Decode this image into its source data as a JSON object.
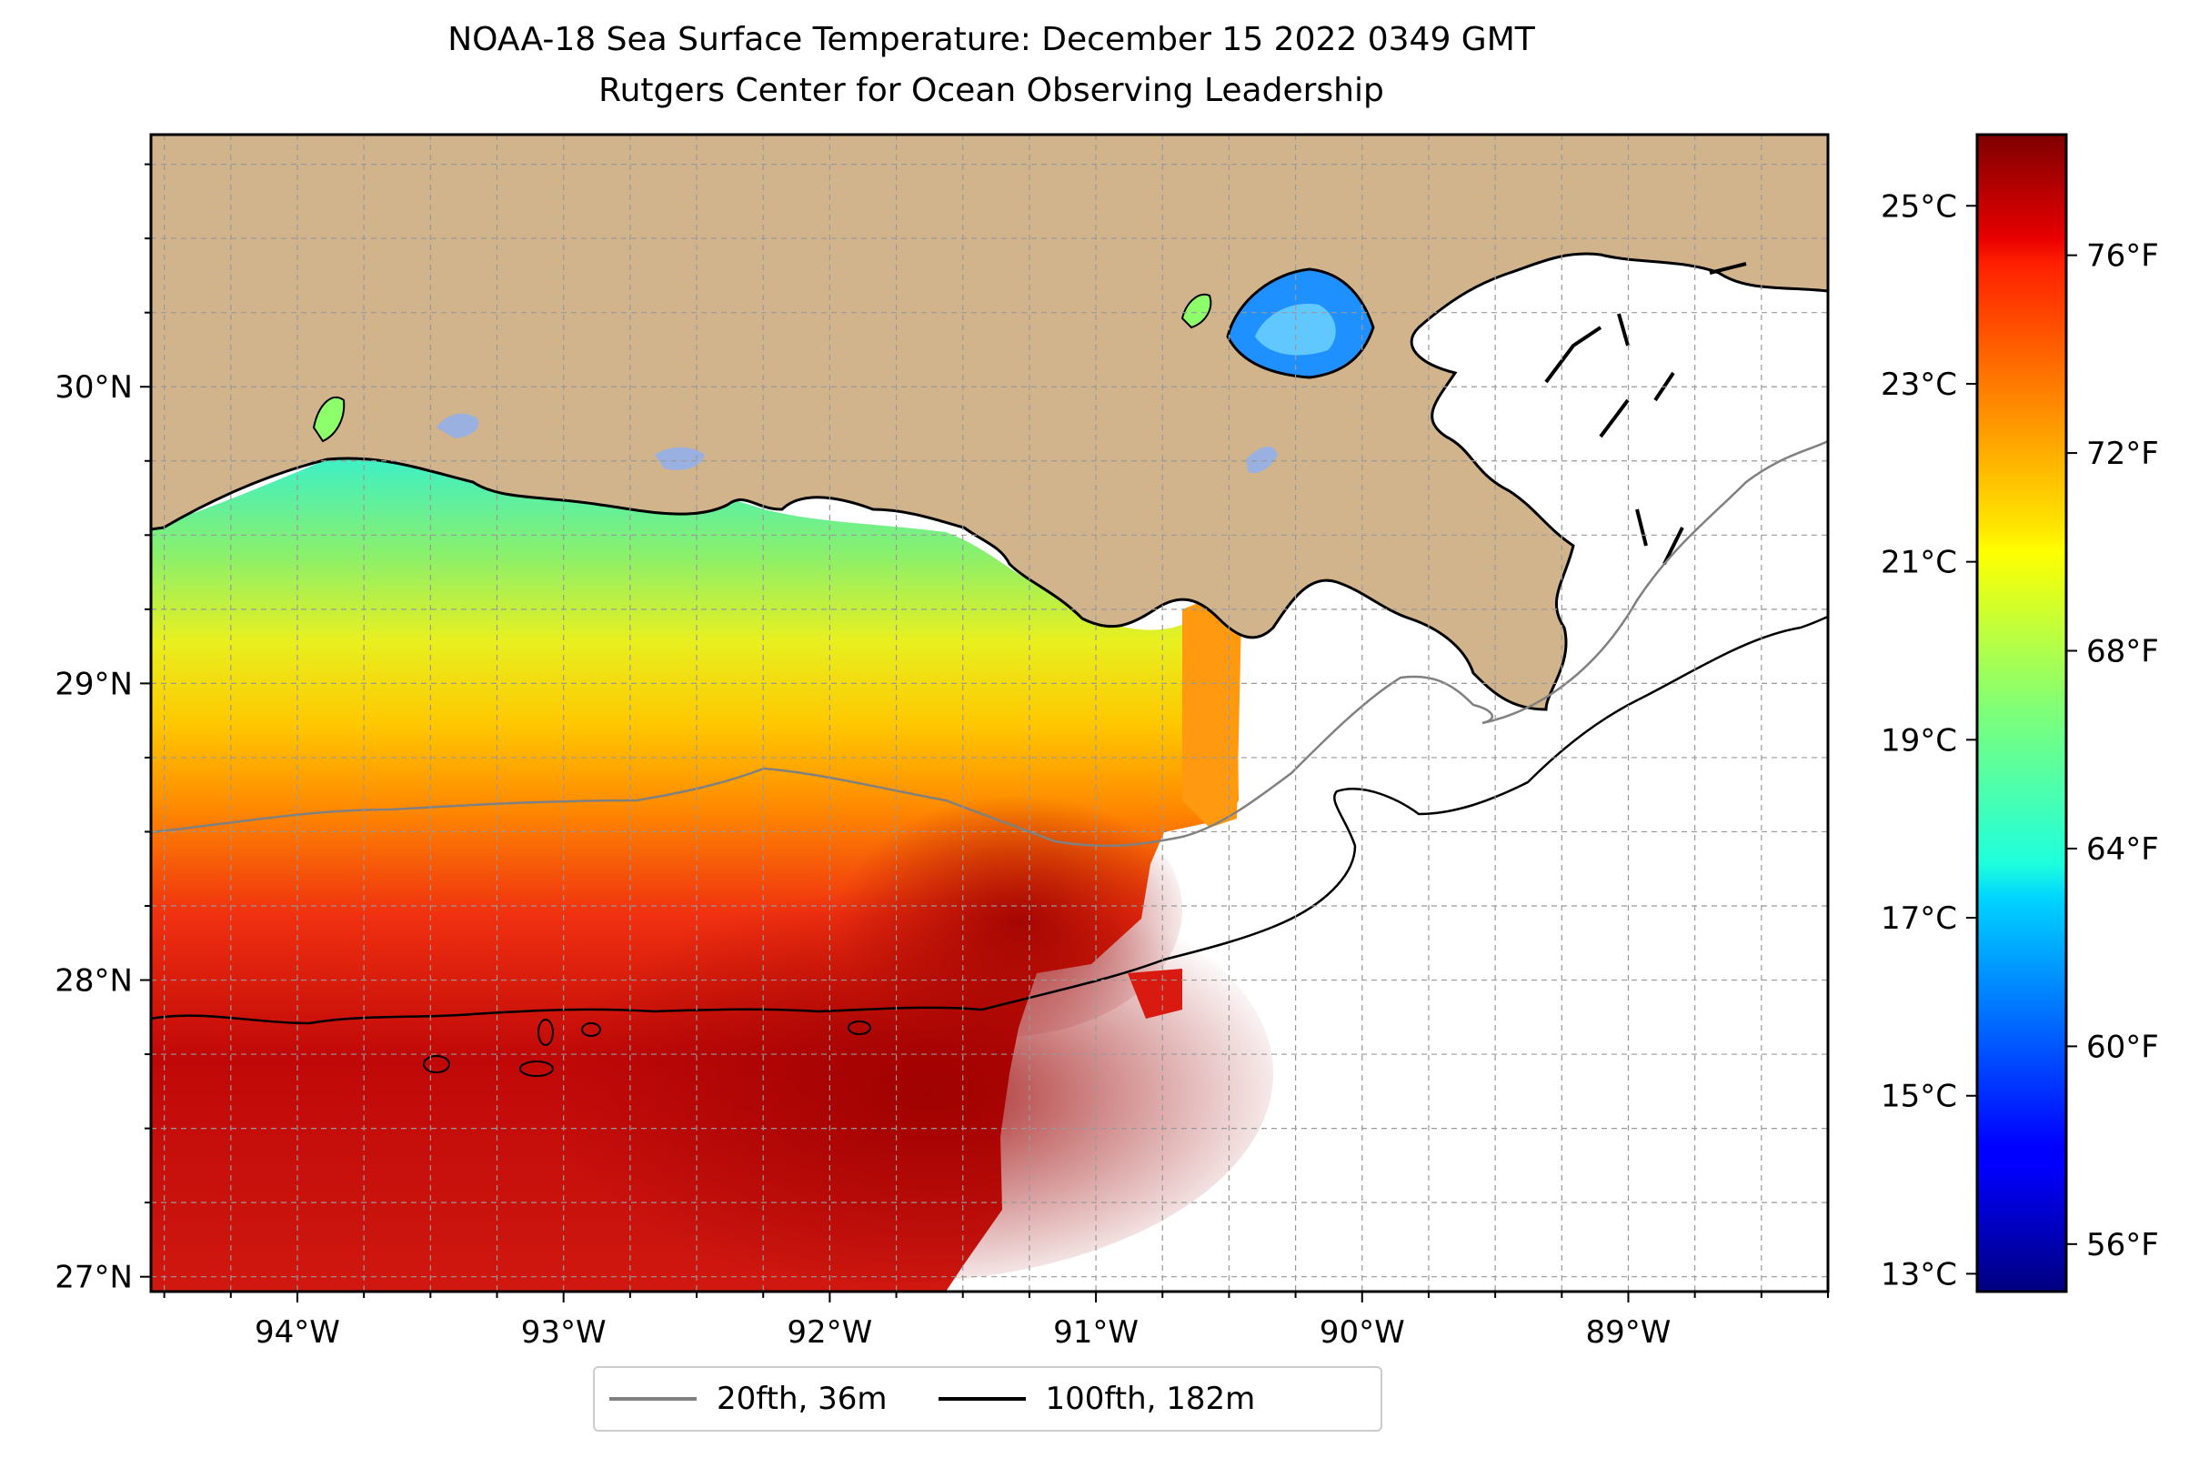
{
  "title": {
    "line1": "NOAA-18 Sea Surface Temperature: December 15 2022 0349 GMT",
    "line2": "Rutgers Center for Ocean Observing Leadership"
  },
  "map": {
    "lon_range": [
      -94.55,
      -88.25
    ],
    "lat_range": [
      26.95,
      30.85
    ],
    "x_ticks": [
      {
        "value": -94,
        "label": "94°W"
      },
      {
        "value": -93,
        "label": "93°W"
      },
      {
        "value": -92,
        "label": "92°W"
      },
      {
        "value": -91,
        "label": "91°W"
      },
      {
        "value": -90,
        "label": "90°W"
      },
      {
        "value": -89,
        "label": "89°W"
      }
    ],
    "y_ticks": [
      {
        "value": 27,
        "label": "27°N"
      },
      {
        "value": 28,
        "label": "28°N"
      },
      {
        "value": 29,
        "label": "29°N"
      },
      {
        "value": 30,
        "label": "30°N"
      }
    ],
    "gridlines": "dashed, every 0.25°",
    "land_color": "#d2b48c",
    "no_data_color": "#ffffff",
    "colormap": "jet"
  },
  "colorbar": {
    "celsius_range": [
      12.8,
      25.8
    ],
    "celsius_ticks": [
      {
        "value": 13,
        "label": "13°C"
      },
      {
        "value": 15,
        "label": "15°C"
      },
      {
        "value": 17,
        "label": "17°C"
      },
      {
        "value": 19,
        "label": "19°C"
      },
      {
        "value": 21,
        "label": "21°C"
      },
      {
        "value": 23,
        "label": "23°C"
      },
      {
        "value": 25,
        "label": "25°C"
      }
    ],
    "fahrenheit_ticks": [
      {
        "value": 56,
        "label": "56°F"
      },
      {
        "value": 60,
        "label": "60°F"
      },
      {
        "value": 64,
        "label": "64°F"
      },
      {
        "value": 68,
        "label": "68°F"
      },
      {
        "value": 72,
        "label": "72°F"
      },
      {
        "value": 76,
        "label": "76°F"
      }
    ]
  },
  "legend": [
    {
      "label": "20fth, 36m",
      "color": "#808080"
    },
    {
      "label": "100fth, 182m",
      "color": "#000000"
    }
  ]
}
